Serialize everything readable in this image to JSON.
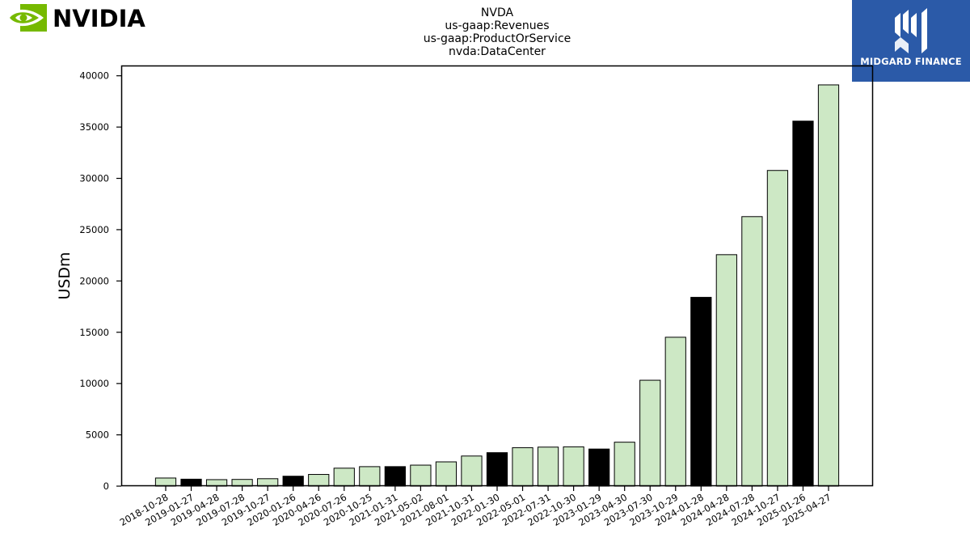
{
  "brand_left": {
    "name": "NVIDIA",
    "icon": "nvidia-eye-logo",
    "color": "#76b900"
  },
  "brand_right": {
    "name": "MIDGARD FINANCE",
    "icon": "midgard-logo",
    "color": "#2b5aa8"
  },
  "chart_data": {
    "type": "bar",
    "title_lines": [
      "NVDA",
      "us-gaap:Revenues",
      "us-gaap:ProductOrService",
      "nvda:DataCenter"
    ],
    "xlabel": "",
    "ylabel": "USDm",
    "ylim": [
      0,
      41000
    ],
    "yticks": [
      0,
      5000,
      10000,
      15000,
      20000,
      25000,
      30000,
      35000,
      40000
    ],
    "grid": false,
    "colors": {
      "quarter": "#cde8c5",
      "fiscal_year_end": "#000000",
      "edge": "#000000"
    },
    "categories": [
      "2018-10-28",
      "2019-01-27",
      "2019-04-28",
      "2019-07-28",
      "2019-10-27",
      "2020-01-26",
      "2020-04-26",
      "2020-07-26",
      "2020-10-25",
      "2021-01-31",
      "2021-05-02",
      "2021-08-01",
      "2021-10-31",
      "2022-01-30",
      "2022-05-01",
      "2022-07-31",
      "2022-10-30",
      "2023-01-29",
      "2023-04-30",
      "2023-07-30",
      "2023-10-29",
      "2024-01-28",
      "2024-04-28",
      "2024-07-28",
      "2024-10-27",
      "2025-01-26",
      "2025-04-27"
    ],
    "values": [
      792,
      679,
      634,
      655,
      726,
      968,
      1141,
      1752,
      1900,
      1903,
      2048,
      2366,
      2936,
      3263,
      3750,
      3806,
      3833,
      3616,
      4284,
      10323,
      14514,
      18404,
      22563,
      26272,
      30771,
      35580,
      39112
    ],
    "highlight": [
      false,
      true,
      false,
      false,
      false,
      true,
      false,
      false,
      false,
      true,
      false,
      false,
      false,
      true,
      false,
      false,
      false,
      true,
      false,
      false,
      false,
      true,
      false,
      false,
      false,
      true,
      false
    ]
  }
}
